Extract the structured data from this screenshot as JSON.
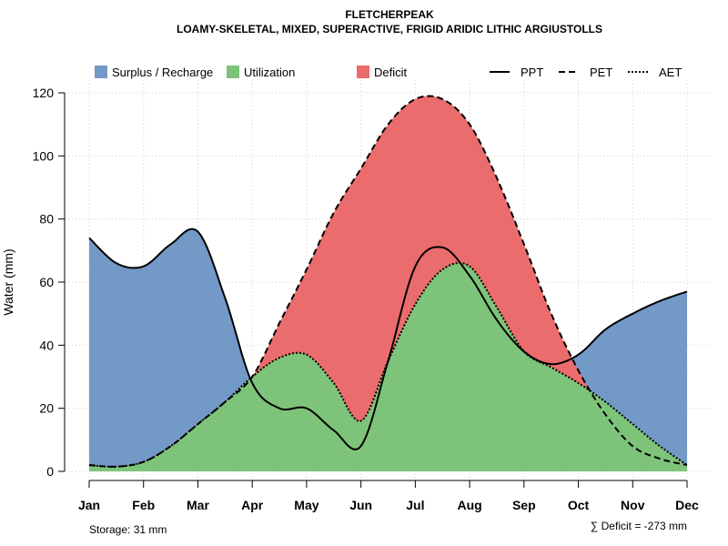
{
  "chart_data": {
    "type": "area",
    "title": "FLETCHERPEAK",
    "subtitle": "LOAMY-SKELETAL, MIXED, SUPERACTIVE, FRIGID ARIDIC LITHIC ARGIUSTOLLS",
    "ylabel": "Water (mm)",
    "xlabel": "",
    "ylim": [
      0,
      120
    ],
    "yticks": [
      0,
      20,
      40,
      60,
      80,
      100,
      120
    ],
    "grid": true,
    "categories": [
      "Jan",
      "Feb",
      "Mar",
      "Apr",
      "May",
      "Jun",
      "Jul",
      "Aug",
      "Sep",
      "Oct",
      "Nov",
      "Dec"
    ],
    "x": [
      1,
      1.5,
      2,
      2.5,
      3,
      3.5,
      4,
      4.5,
      5,
      5.5,
      6,
      6.5,
      7,
      7.5,
      8,
      8.5,
      9,
      9.5,
      10,
      10.5,
      11,
      11.5,
      12
    ],
    "series": [
      {
        "name": "PPT",
        "style": "solid",
        "values": [
          74,
          66,
          65,
          72,
          76,
          55,
          28,
          20,
          20,
          13,
          8,
          35,
          65,
          71,
          62,
          48,
          38,
          34,
          37,
          45,
          50,
          54,
          57
        ]
      },
      {
        "name": "PET",
        "style": "dashed",
        "values": [
          2,
          1.5,
          3,
          8,
          15,
          22,
          30,
          47,
          64,
          82,
          96,
          110,
          118,
          118,
          110,
          93,
          72,
          50,
          32,
          18,
          8,
          4,
          2
        ]
      },
      {
        "name": "AET",
        "style": "dotted",
        "values": [
          2,
          1.5,
          3,
          8,
          15,
          22,
          30,
          36,
          37,
          28,
          16,
          35,
          53,
          64,
          65,
          52,
          38,
          33,
          28,
          22,
          15,
          8,
          2
        ]
      }
    ],
    "legend": [
      {
        "label": "Surplus / Recharge",
        "kind": "fill",
        "color": "#7399c6"
      },
      {
        "label": "Utilization",
        "kind": "fill",
        "color": "#7dc47a"
      },
      {
        "label": "Deficit",
        "kind": "fill",
        "color": "#eb6c6c"
      },
      {
        "label": "PPT",
        "kind": "line",
        "style": "solid"
      },
      {
        "label": "PET",
        "kind": "line",
        "style": "dashed"
      },
      {
        "label": "AET",
        "kind": "line",
        "style": "dotted"
      }
    ],
    "legend_position": "top",
    "colors": {
      "surplus": "#7399c6",
      "utilization": "#7dc47a",
      "deficit": "#eb6c6c"
    }
  },
  "notes": {
    "storage": "Storage: 31 mm",
    "deficit": "∑ Deficit = -273 mm"
  }
}
